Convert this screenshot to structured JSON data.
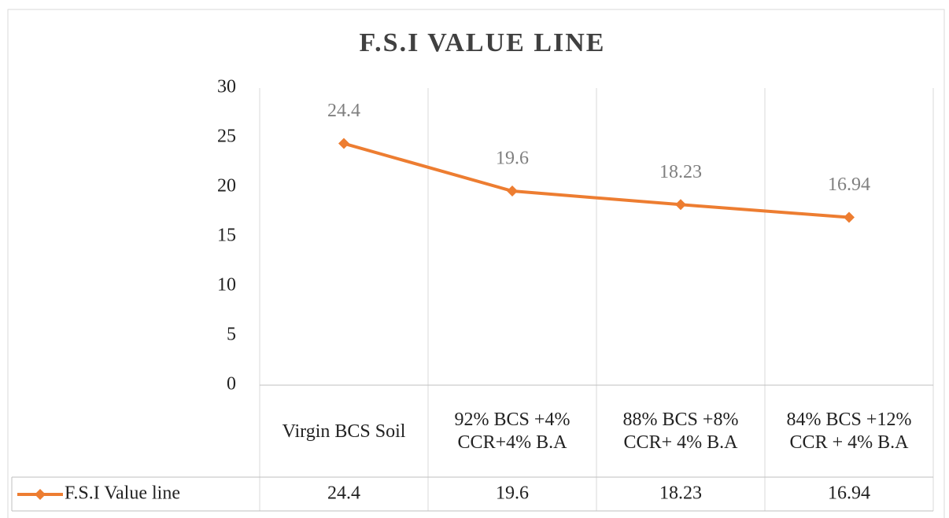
{
  "chart_data": {
    "type": "line",
    "title": "F.S.I VALUE LINE",
    "categories": [
      "Virgin BCS Soil",
      "92% BCS +4% CCR+4% B.A",
      "88% BCS +8% CCR+ 4% B.A",
      "84% BCS +12% CCR + 4% B.A"
    ],
    "series": [
      {
        "name": "F.S.I Value line",
        "color": "#ed7d31",
        "values": [
          24.4,
          19.6,
          18.23,
          16.94
        ]
      }
    ],
    "ylim": [
      0,
      30
    ],
    "yticks": [
      0,
      5,
      10,
      15,
      20,
      25,
      30
    ],
    "data_labels": true,
    "data_table": true
  }
}
